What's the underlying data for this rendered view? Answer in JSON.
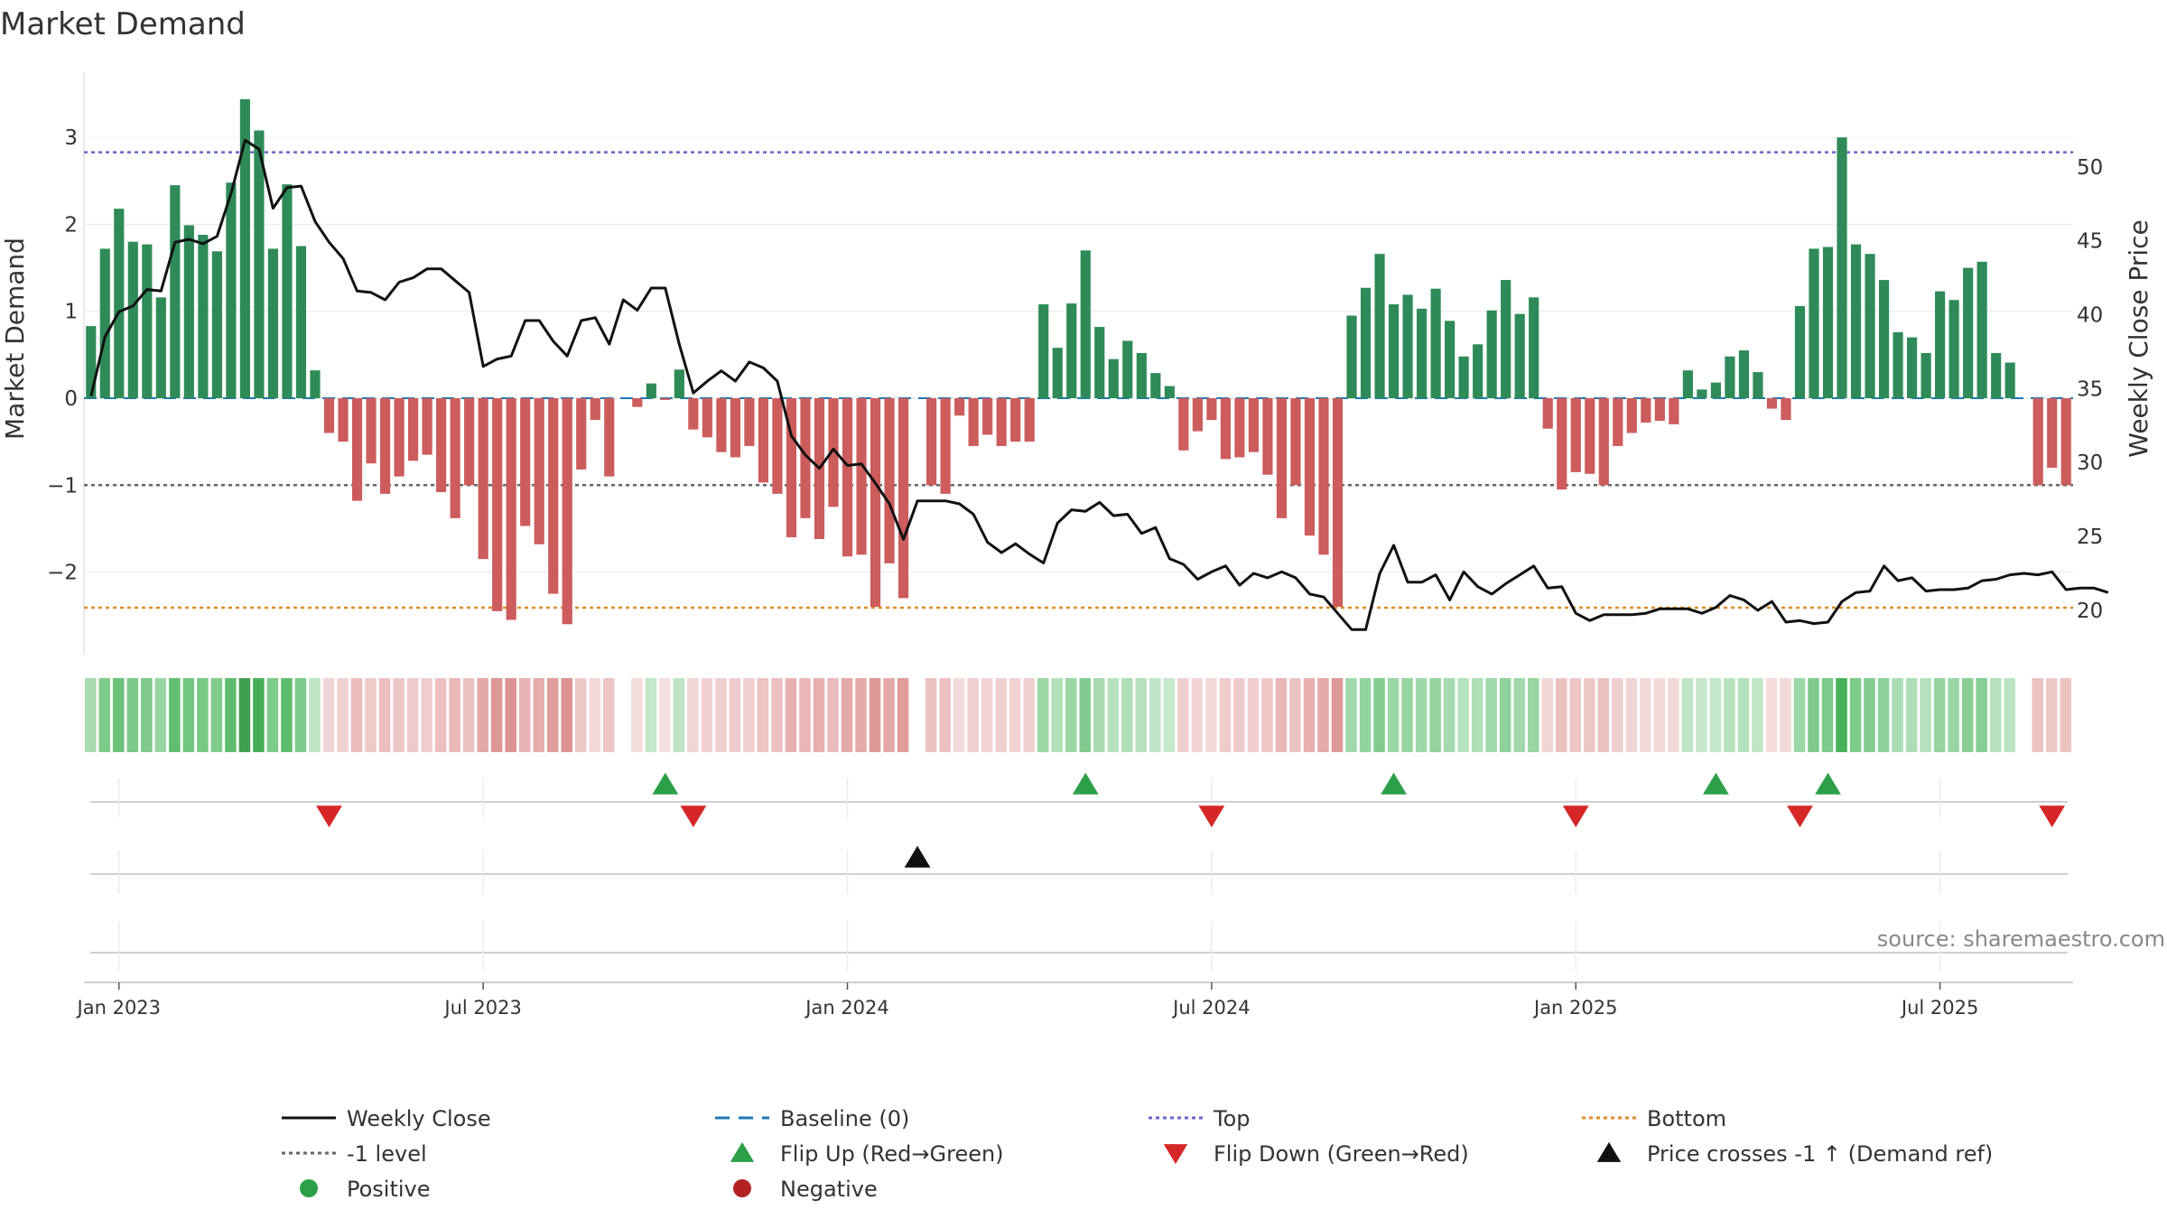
{
  "chart_data": {
    "type": "bar",
    "title": "Market Demand",
    "ylabel_left": "Market Demand",
    "ylabel_right": "Weekly Close Price",
    "source": "source: sharemaestro.com",
    "ylim_left": [
      -2.95,
      3.75
    ],
    "ylim_right": [
      17,
      56.4
    ],
    "yticks_left": [
      3,
      2,
      1,
      0,
      -1,
      -2
    ],
    "yticks_left_labels": [
      "3",
      "2",
      "1",
      "0",
      "−1",
      "−2"
    ],
    "yticks_right": [
      50,
      45,
      40,
      35,
      30,
      25,
      20
    ],
    "yticks_right_labels": [
      "50",
      "45",
      "40",
      "35",
      "30",
      "25",
      "20"
    ],
    "x_week_start": -2,
    "x_month_ticks": [
      0,
      26,
      52,
      78,
      104,
      130
    ],
    "x_month_labels": [
      "Jan 2023",
      "Jul 2023",
      "Jan 2024",
      "Jul 2024",
      "Jan 2025",
      "Jul 2025"
    ],
    "reference_lines": {
      "top": 2.83,
      "minus_one": -1,
      "bottom": -2.41,
      "baseline": 0
    },
    "demand": [
      0.83,
      1.72,
      2.18,
      1.8,
      1.77,
      1.16,
      2.45,
      1.99,
      1.88,
      1.69,
      2.48,
      3.44,
      3.08,
      1.72,
      2.46,
      1.75,
      0.32,
      -0.4,
      -0.5,
      -1.18,
      -0.75,
      -1.1,
      -0.9,
      -0.72,
      -0.65,
      -1.08,
      -1.38,
      -1.0,
      -1.85,
      -2.45,
      -2.55,
      -1.47,
      -1.68,
      -2.25,
      -2.6,
      -0.82,
      -0.25,
      -0.9,
      0,
      -0.1,
      0.17,
      -0.02,
      0.33,
      -0.36,
      -0.45,
      -0.62,
      -0.68,
      -0.55,
      -0.97,
      -1.1,
      -1.6,
      -1.38,
      -1.62,
      -1.25,
      -1.82,
      -1.8,
      -2.4,
      -1.9,
      -2.3,
      0,
      -1.0,
      -1.1,
      -0.2,
      -0.55,
      -0.42,
      -0.55,
      -0.5,
      -0.5,
      1.08,
      0.58,
      1.09,
      1.7,
      0.82,
      0.45,
      0.66,
      0.52,
      0.29,
      0.14,
      -0.6,
      -0.38,
      -0.25,
      -0.7,
      -0.68,
      -0.62,
      -0.88,
      -1.38,
      -1.0,
      -1.58,
      -1.8,
      -2.4,
      0.95,
      1.27,
      1.66,
      1.08,
      1.19,
      1.03,
      1.26,
      0.89,
      0.48,
      0.62,
      1.01,
      1.36,
      0.97,
      1.16,
      -0.35,
      -1.05,
      -0.85,
      -0.87,
      -1.0,
      -0.55,
      -0.4,
      -0.28,
      -0.26,
      -0.3,
      0.32,
      0.1,
      0.18,
      0.48,
      0.55,
      0.3,
      -0.12,
      -0.25,
      1.06,
      1.72,
      1.74,
      3.0,
      1.77,
      1.66,
      1.36,
      0.76,
      0.7,
      0.52,
      1.23,
      1.13,
      1.5,
      1.57,
      0.52,
      0.41,
      0,
      -1.0,
      -0.8,
      -1.0
    ],
    "close": [
      34.5,
      38.5,
      40.2,
      40.6,
      41.7,
      41.6,
      44.9,
      45.1,
      44.8,
      45.3,
      48.2,
      51.8,
      51.2,
      47.2,
      48.6,
      48.7,
      46.3,
      44.9,
      43.8,
      41.6,
      41.5,
      41.0,
      42.2,
      42.5,
      43.1,
      43.1,
      42.3,
      41.5,
      36.5,
      37.0,
      37.2,
      39.6,
      39.6,
      38.2,
      37.2,
      39.6,
      39.8,
      38.0,
      41.0,
      40.3,
      41.8,
      41.8,
      38.0,
      34.7,
      35.5,
      36.2,
      35.5,
      36.8,
      36.4,
      35.5,
      31.8,
      30.5,
      29.6,
      30.9,
      29.8,
      29.9,
      28.6,
      27.2,
      24.8,
      27.4,
      27.4,
      27.4,
      27.2,
      26.5,
      24.6,
      23.9,
      24.5,
      23.8,
      23.2,
      25.9,
      26.8,
      26.7,
      27.3,
      26.4,
      26.5,
      25.2,
      25.6,
      23.5,
      23.1,
      22.1,
      22.6,
      23.0,
      21.7,
      22.5,
      22.2,
      22.6,
      22.2,
      21.1,
      20.9,
      19.8,
      18.7,
      18.7,
      22.5,
      24.4,
      21.9,
      21.9,
      22.4,
      20.7,
      22.6,
      21.6,
      21.1,
      21.8,
      22.4,
      23.0,
      21.5,
      21.6,
      19.8,
      19.3,
      19.7,
      19.7,
      19.7,
      19.8,
      20.1,
      20.1,
      20.1,
      19.8,
      20.2,
      21.0,
      20.7,
      20.0,
      20.6,
      19.2,
      19.3,
      19.1,
      19.2,
      20.6,
      21.2,
      21.3,
      23.0,
      22.0,
      22.2,
      21.3,
      21.4,
      21.4,
      21.5,
      22.0,
      22.1,
      22.4,
      22.5,
      22.4,
      22.6,
      21.4,
      21.5,
      21.5,
      21.2
    ],
    "heat_strip": "Weekly demand heat strip; cell colour encodes the sign and magnitude of the demand value of each week",
    "events": {
      "flip_up": [
        39,
        69,
        91,
        114,
        122
      ],
      "flip_down": [
        15,
        41,
        78,
        104,
        120,
        138
      ],
      "price_cross": [
        57
      ]
    },
    "legend": [
      {
        "label": "Weekly Close",
        "marker": "line",
        "color": "#111111"
      },
      {
        "label": "Baseline (0)",
        "marker": "dash",
        "color": "#1f77b4"
      },
      {
        "label": "Top",
        "marker": "dot",
        "color": "#6666cc"
      },
      {
        "label": "Bottom",
        "marker": "dot",
        "color": "#e08b24"
      },
      {
        "label": "-1 level",
        "marker": "dot",
        "color": "#666666"
      },
      {
        "label": "Flip Up (Red→Green)",
        "marker": "triangle-up",
        "color": "#2ca048"
      },
      {
        "label": "Flip Down (Green→Red)",
        "marker": "triangle-down",
        "color": "#d62728"
      },
      {
        "label": "Price crosses -1 ↑ (Demand ref)",
        "marker": "triangle-up",
        "color": "#111111"
      },
      {
        "label": "Positive",
        "marker": "circle",
        "color": "#2ca048"
      },
      {
        "label": "Negative",
        "marker": "circle",
        "color": "#b22222"
      }
    ],
    "colors": {
      "positive_bar": "#2e8b57",
      "negative_bar": "#cd5c5c",
      "price_line": "#111111",
      "baseline": "#1f77b4",
      "top": "#6666cc",
      "bottom": "#e08b24",
      "minus_one": "#666666",
      "flip_up": "#2ca048",
      "flip_down": "#d62728",
      "price_cross": "#111111"
    }
  }
}
